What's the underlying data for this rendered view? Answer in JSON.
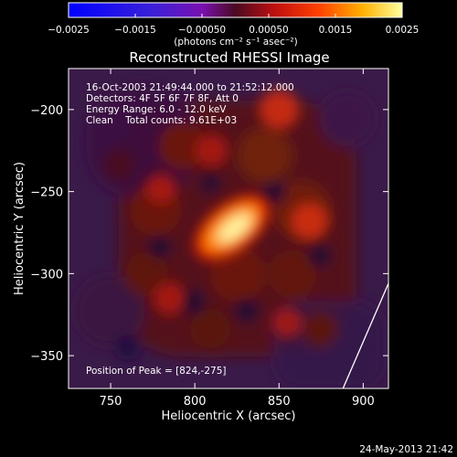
{
  "chart_data": {
    "type": "heatmap",
    "title": "Reconstructed RHESSI Image",
    "xlabel": "Heliocentric X (arcsec)",
    "ylabel": "Heliocentric Y (arcsec)",
    "xlim": [
      725,
      915
    ],
    "ylim": [
      -370,
      -175
    ],
    "x_ticks": [
      750,
      800,
      850,
      900
    ],
    "y_ticks": [
      -200,
      -250,
      -300,
      -350
    ],
    "x_tick_labels": [
      "750",
      "800",
      "850",
      "900"
    ],
    "y_tick_labels": [
      "−200",
      "−250",
      "−300",
      "−350"
    ],
    "colorbar": {
      "range": [
        -0.0025,
        0.0025
      ],
      "tick_values": [
        -0.0025,
        -0.0015,
        -0.0005,
        0.0005,
        0.0015,
        0.0025
      ],
      "tick_labels": [
        "−0.0025",
        "−0.0015",
        "−0.00050",
        "0.00050",
        "0.0015",
        "0.0025"
      ],
      "units_text": "(photons cm⁻² s⁻¹ asec⁻²)"
    },
    "annotations": [
      "16-Oct-2003 21:49:44.000 to 21:52:12.000",
      "Detectors: 4F 5F 6F 7F 8F, Att 0",
      "Energy Range: 6.0 - 12.0 keV",
      "Clean    Total counts: 9.61E+03"
    ],
    "peak_label": "Position of Peak = [824,-275]",
    "peak": {
      "x": 824,
      "y": -275
    },
    "sources": [
      {
        "x": 822,
        "y": -272,
        "value": 0.0025
      },
      {
        "x": 850,
        "y": -200,
        "value": 0.001
      },
      {
        "x": 868,
        "y": -268,
        "value": 0.0009
      },
      {
        "x": 785,
        "y": -315,
        "value": 0.0007
      },
      {
        "x": 810,
        "y": -225,
        "value": 0.0007
      },
      {
        "x": 855,
        "y": -330,
        "value": 0.0006
      },
      {
        "x": 780,
        "y": -248,
        "value": 0.0006
      }
    ],
    "limb_line": [
      [
        888,
        -370
      ],
      [
        915,
        -306
      ]
    ]
  },
  "footer": {
    "timestamp": "24-May-2013 21:42"
  }
}
